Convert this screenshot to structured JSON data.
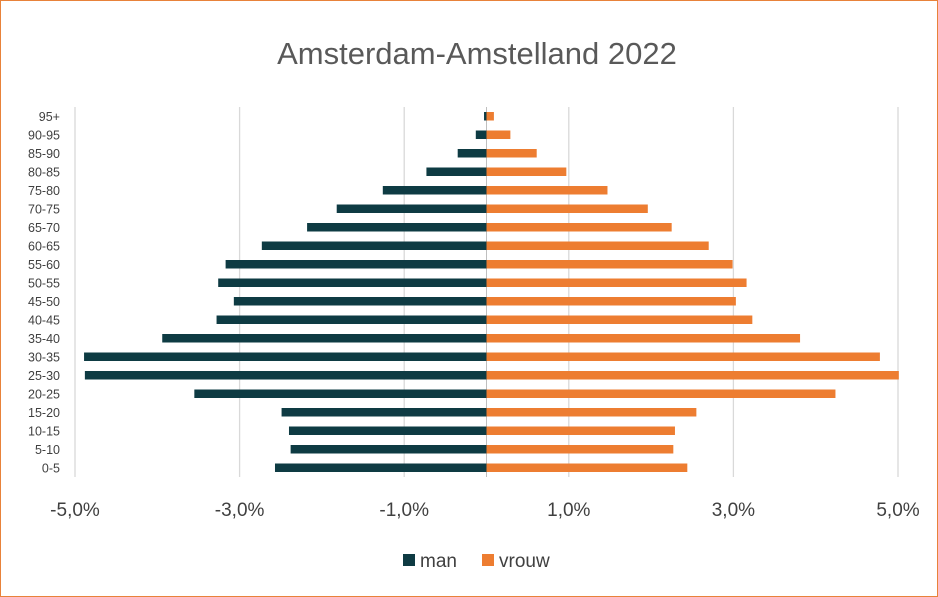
{
  "chart_data": {
    "type": "bar",
    "orientation": "horizontal",
    "title": "Amsterdam-Amstelland 2022",
    "categories": [
      "0-5",
      "5-10",
      "10-15",
      "15-20",
      "20-25",
      "25-30",
      "30-35",
      "35-40",
      "40-45",
      "45-50",
      "50-55",
      "55-60",
      "60-65",
      "65-70",
      "70-75",
      "75-80",
      "80-85",
      "85-90",
      "90-95",
      "95+"
    ],
    "series": [
      {
        "name": "man",
        "color": "#0E3B43",
        "values": [
          -2.57,
          -2.38,
          -2.4,
          -2.49,
          -3.55,
          -4.88,
          -4.89,
          -3.94,
          -3.28,
          -3.07,
          -3.26,
          -3.17,
          -2.73,
          -2.18,
          -1.82,
          -1.26,
          -0.73,
          -0.35,
          -0.13,
          -0.03
        ]
      },
      {
        "name": "vrouw",
        "color": "#ED7D31",
        "values": [
          2.44,
          2.27,
          2.29,
          2.55,
          4.24,
          5.01,
          4.78,
          3.81,
          3.23,
          3.03,
          3.16,
          2.99,
          2.7,
          2.25,
          1.96,
          1.47,
          0.97,
          0.61,
          0.29,
          0.09
        ]
      }
    ],
    "xlim": [
      -5.0,
      5.0
    ],
    "xticks": [
      -5.0,
      -3.0,
      -1.0,
      1.0,
      3.0,
      5.0
    ],
    "xtick_labels": [
      "-5,0%",
      "-3,0%",
      "-1,0%",
      "1,0%",
      "3,0%",
      "5,0%"
    ],
    "grid": true,
    "legend_position": "bottom"
  }
}
